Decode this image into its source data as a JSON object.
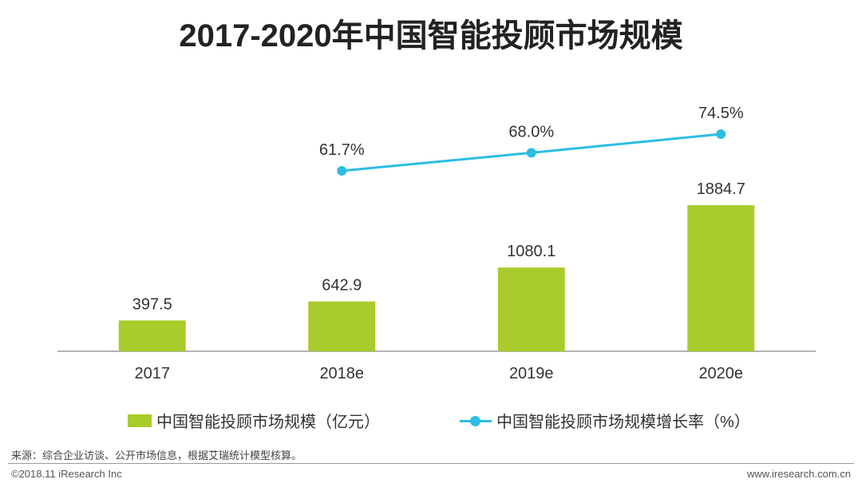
{
  "chart_data": {
    "type": "bar",
    "title": "2017-2020年中国智能投顾市场规模",
    "categories": [
      "2017",
      "2018e",
      "2019e",
      "2020e"
    ],
    "series": [
      {
        "name": "中国智能投顾市场规模（亿元）",
        "kind": "bar",
        "values": [
          397.5,
          642.9,
          1080.1,
          1884.7
        ],
        "labels": [
          "397.5",
          "642.9",
          "1080.1",
          "1884.7"
        ],
        "color": "#a9cc2c"
      },
      {
        "name": "中国智能投顾市场规模增长率（%）",
        "kind": "line",
        "values": [
          null,
          61.7,
          68.0,
          74.5
        ],
        "labels": [
          "",
          "61.7%",
          "68.0%",
          "74.5%"
        ],
        "color": "#2cbde3"
      }
    ],
    "xlabel": "",
    "ylabel": "",
    "ylim": [
      0,
      2000
    ],
    "grid": false,
    "legend": "bottom"
  },
  "source": "来源：综合企业访谈、公开市场信息，根据艾瑞统计模型核算。",
  "copyright": "©2018.11 iResearch Inc",
  "website": "www.iresearch.com.cn"
}
